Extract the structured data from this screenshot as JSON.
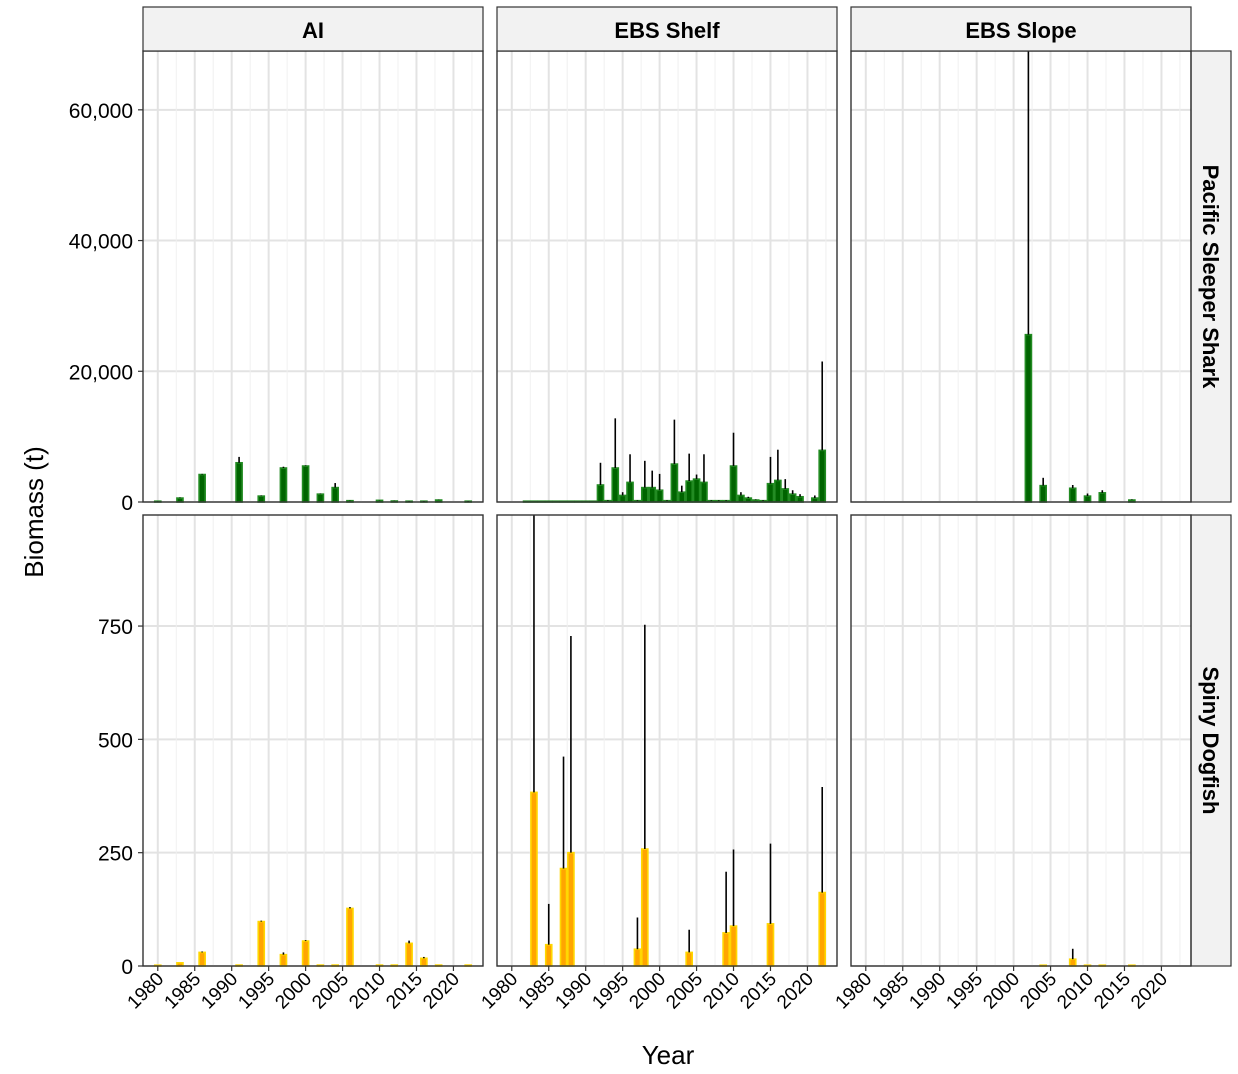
{
  "chart_data": {
    "type": "bar",
    "title": "",
    "xlabel": "Year",
    "ylabel": "Biomass (t)",
    "x_ticks": [
      1980,
      1985,
      1990,
      1995,
      2000,
      2005,
      2010,
      2015,
      2020
    ],
    "xlim": [
      1978,
      2024
    ],
    "grid": true,
    "legend": "none",
    "columns": [
      "AI",
      "EBS Shelf",
      "EBS Slope"
    ],
    "rows": [
      {
        "name": "Pacific Sleeper Shark",
        "ylim": [
          0,
          69000
        ],
        "y_ticks": [
          0,
          20000,
          40000,
          60000
        ],
        "y_tick_labels": [
          "0",
          "20,000",
          "40,000",
          "60,000"
        ],
        "fill": "#006400",
        "outline": "#228B22",
        "panels": [
          {
            "column": "AI",
            "bars": [
              {
                "year": 1980,
                "value": 100,
                "upper": 120
              },
              {
                "year": 1983,
                "value": 600,
                "upper": 700
              },
              {
                "year": 1986,
                "value": 4200,
                "upper": 4300
              },
              {
                "year": 1991,
                "value": 6000,
                "upper": 6900
              },
              {
                "year": 1994,
                "value": 900,
                "upper": 1000
              },
              {
                "year": 1997,
                "value": 5200,
                "upper": 5400
              },
              {
                "year": 2000,
                "value": 5500,
                "upper": 5600
              },
              {
                "year": 2002,
                "value": 1200,
                "upper": 1300
              },
              {
                "year": 2004,
                "value": 2200,
                "upper": 2900
              },
              {
                "year": 2006,
                "value": 200,
                "upper": 250
              },
              {
                "year": 2010,
                "value": 250,
                "upper": 300
              },
              {
                "year": 2012,
                "value": 150,
                "upper": 200
              },
              {
                "year": 2014,
                "value": 100,
                "upper": 150
              },
              {
                "year": 2016,
                "value": 100,
                "upper": 150
              },
              {
                "year": 2018,
                "value": 300,
                "upper": 350
              },
              {
                "year": 2022,
                "value": 100,
                "upper": 150
              }
            ]
          },
          {
            "column": "EBS Shelf",
            "bars": [
              {
                "year": 1982,
                "value": 50,
                "upper": 60
              },
              {
                "year": 1983,
                "value": 50,
                "upper": 60
              },
              {
                "year": 1984,
                "value": 50,
                "upper": 60
              },
              {
                "year": 1985,
                "value": 50,
                "upper": 60
              },
              {
                "year": 1986,
                "value": 50,
                "upper": 60
              },
              {
                "year": 1987,
                "value": 50,
                "upper": 60
              },
              {
                "year": 1988,
                "value": 50,
                "upper": 60
              },
              {
                "year": 1989,
                "value": 50,
                "upper": 60
              },
              {
                "year": 1990,
                "value": 50,
                "upper": 60
              },
              {
                "year": 1991,
                "value": 50,
                "upper": 60
              },
              {
                "year": 1992,
                "value": 2600,
                "upper": 6000
              },
              {
                "year": 1993,
                "value": 200,
                "upper": 300
              },
              {
                "year": 1994,
                "value": 5200,
                "upper": 12800
              },
              {
                "year": 1995,
                "value": 1000,
                "upper": 1500
              },
              {
                "year": 1996,
                "value": 3000,
                "upper": 7300
              },
              {
                "year": 1997,
                "value": 200,
                "upper": 300
              },
              {
                "year": 1998,
                "value": 2200,
                "upper": 6300
              },
              {
                "year": 1999,
                "value": 2200,
                "upper": 4800
              },
              {
                "year": 2000,
                "value": 1800,
                "upper": 4300
              },
              {
                "year": 2001,
                "value": 200,
                "upper": 300
              },
              {
                "year": 2002,
                "value": 5800,
                "upper": 12600
              },
              {
                "year": 2003,
                "value": 1500,
                "upper": 2500
              },
              {
                "year": 2004,
                "value": 3200,
                "upper": 7400
              },
              {
                "year": 2005,
                "value": 3500,
                "upper": 4200
              },
              {
                "year": 2006,
                "value": 3000,
                "upper": 7300
              },
              {
                "year": 2007,
                "value": 200,
                "upper": 300
              },
              {
                "year": 2008,
                "value": 200,
                "upper": 300
              },
              {
                "year": 2009,
                "value": 200,
                "upper": 300
              },
              {
                "year": 2010,
                "value": 5500,
                "upper": 10600
              },
              {
                "year": 2011,
                "value": 1000,
                "upper": 1500
              },
              {
                "year": 2012,
                "value": 600,
                "upper": 800
              },
              {
                "year": 2013,
                "value": 300,
                "upper": 400
              },
              {
                "year": 2014,
                "value": 200,
                "upper": 300
              },
              {
                "year": 2015,
                "value": 2800,
                "upper": 6900
              },
              {
                "year": 2016,
                "value": 3300,
                "upper": 8000
              },
              {
                "year": 2017,
                "value": 2000,
                "upper": 3500
              },
              {
                "year": 2018,
                "value": 1200,
                "upper": 1800
              },
              {
                "year": 2019,
                "value": 800,
                "upper": 1200
              },
              {
                "year": 2021,
                "value": 600,
                "upper": 1000
              },
              {
                "year": 2022,
                "value": 7900,
                "upper": 21500
              }
            ]
          },
          {
            "column": "EBS Slope",
            "bars": [
              {
                "year": 2002,
                "value": 25600,
                "upper": 69000
              },
              {
                "year": 2004,
                "value": 2500,
                "upper": 3700
              },
              {
                "year": 2008,
                "value": 2100,
                "upper": 2600
              },
              {
                "year": 2010,
                "value": 900,
                "upper": 1300
              },
              {
                "year": 2012,
                "value": 1400,
                "upper": 1800
              },
              {
                "year": 2016,
                "value": 300,
                "upper": 400
              }
            ]
          }
        ]
      },
      {
        "name": "Spiny Dogfish",
        "ylim": [
          0,
          995
        ],
        "y_ticks": [
          0,
          250,
          500,
          750
        ],
        "y_tick_labels": [
          "0",
          "250",
          "500",
          "750"
        ],
        "fill": "#FFA500",
        "outline": "#FFD700",
        "panels": [
          {
            "column": "AI",
            "bars": [
              {
                "year": 1980,
                "value": 1,
                "upper": 1
              },
              {
                "year": 1983,
                "value": 7,
                "upper": 7
              },
              {
                "year": 1986,
                "value": 30,
                "upper": 32
              },
              {
                "year": 1991,
                "value": 2,
                "upper": 2
              },
              {
                "year": 1994,
                "value": 98,
                "upper": 100
              },
              {
                "year": 1997,
                "value": 25,
                "upper": 30
              },
              {
                "year": 2000,
                "value": 55,
                "upper": 57
              },
              {
                "year": 2002,
                "value": 2,
                "upper": 2
              },
              {
                "year": 2004,
                "value": 2,
                "upper": 2
              },
              {
                "year": 2006,
                "value": 127,
                "upper": 130
              },
              {
                "year": 2010,
                "value": 2,
                "upper": 2
              },
              {
                "year": 2012,
                "value": 2,
                "upper": 2
              },
              {
                "year": 2014,
                "value": 50,
                "upper": 56
              },
              {
                "year": 2016,
                "value": 17,
                "upper": 20
              },
              {
                "year": 2018,
                "value": 2,
                "upper": 2
              },
              {
                "year": 2022,
                "value": 2,
                "upper": 2
              }
            ]
          },
          {
            "column": "EBS Shelf",
            "bars": [
              {
                "year": 1983,
                "value": 383,
                "upper": 995
              },
              {
                "year": 1985,
                "value": 47,
                "upper": 137
              },
              {
                "year": 1987,
                "value": 215,
                "upper": 462
              },
              {
                "year": 1988,
                "value": 250,
                "upper": 728
              },
              {
                "year": 1997,
                "value": 37,
                "upper": 107
              },
              {
                "year": 1998,
                "value": 258,
                "upper": 753
              },
              {
                "year": 2004,
                "value": 30,
                "upper": 80
              },
              {
                "year": 2009,
                "value": 73,
                "upper": 208
              },
              {
                "year": 2010,
                "value": 88,
                "upper": 257
              },
              {
                "year": 2015,
                "value": 93,
                "upper": 270
              },
              {
                "year": 2022,
                "value": 162,
                "upper": 395
              }
            ]
          },
          {
            "column": "EBS Slope",
            "bars": [
              {
                "year": 2004,
                "value": 1,
                "upper": 1
              },
              {
                "year": 2008,
                "value": 15,
                "upper": 38
              },
              {
                "year": 2010,
                "value": 1,
                "upper": 1
              },
              {
                "year": 2012,
                "value": 1,
                "upper": 1
              },
              {
                "year": 2016,
                "value": 1,
                "upper": 1
              }
            ]
          }
        ]
      }
    ]
  }
}
